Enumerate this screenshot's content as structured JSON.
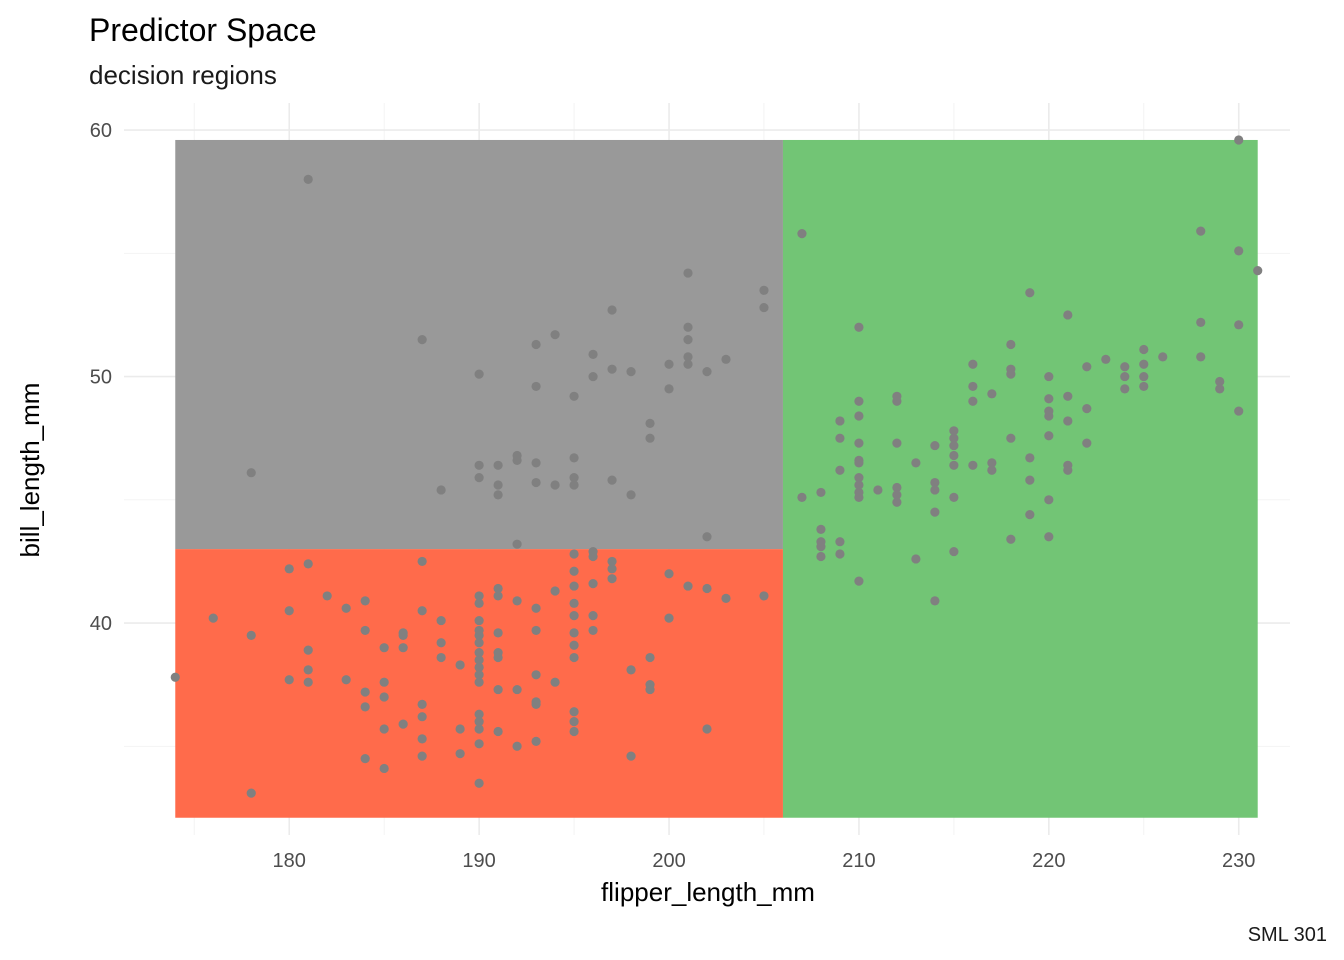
{
  "chart_data": {
    "type": "scatter",
    "title": "Predictor Space",
    "subtitle": "decision regions",
    "xlabel": "flipper_length_mm",
    "ylabel": "bill_length_mm",
    "caption": "SML 301",
    "xlim": [
      171.3,
      232.7
    ],
    "ylim": [
      31.4,
      61.1
    ],
    "xticks": [
      180,
      190,
      200,
      210,
      220,
      230
    ],
    "yticks": [
      40,
      50,
      60
    ],
    "grid": true,
    "point_color": "#808080",
    "regions": [
      {
        "xmin": 174,
        "xmax": 206,
        "ymin": 43,
        "ymax": 59.6,
        "color": "#999999"
      },
      {
        "xmin": 174,
        "xmax": 206,
        "ymin": 32.1,
        "ymax": 43,
        "color": "#FF6B4B"
      },
      {
        "xmin": 206,
        "xmax": 231,
        "ymin": 32.1,
        "ymax": 59.6,
        "color": "#72C575"
      }
    ],
    "points": [
      [
        181,
        58.0
      ],
      [
        178,
        46.1
      ],
      [
        187,
        51.5
      ],
      [
        188,
        45.4
      ],
      [
        190,
        50.1
      ],
      [
        190,
        46.4
      ],
      [
        190,
        45.9
      ],
      [
        191,
        46.4
      ],
      [
        191,
        45.6
      ],
      [
        191,
        45.2
      ],
      [
        192,
        46.8
      ],
      [
        192,
        46.6
      ],
      [
        192,
        43.2
      ],
      [
        193,
        51.3
      ],
      [
        193,
        49.6
      ],
      [
        193,
        46.5
      ],
      [
        193,
        45.7
      ],
      [
        194,
        51.7
      ],
      [
        194,
        45.6
      ],
      [
        195,
        49.2
      ],
      [
        195,
        46.7
      ],
      [
        195,
        45.9
      ],
      [
        195,
        45.6
      ],
      [
        196,
        50.9
      ],
      [
        196,
        50.0
      ],
      [
        197,
        52.7
      ],
      [
        197,
        50.3
      ],
      [
        197,
        45.8
      ],
      [
        198,
        50.2
      ],
      [
        198,
        45.2
      ],
      [
        199,
        48.1
      ],
      [
        199,
        47.5
      ],
      [
        200,
        50.5
      ],
      [
        200,
        49.5
      ],
      [
        201,
        54.2
      ],
      [
        201,
        52.0
      ],
      [
        201,
        51.5
      ],
      [
        201,
        50.8
      ],
      [
        201,
        50.5
      ],
      [
        202,
        50.2
      ],
      [
        202,
        43.5
      ],
      [
        203,
        50.7
      ],
      [
        205,
        53.5
      ],
      [
        205,
        52.8
      ],
      [
        174,
        37.8
      ],
      [
        176,
        40.2
      ],
      [
        178,
        39.5
      ],
      [
        178,
        33.1
      ],
      [
        180,
        42.2
      ],
      [
        180,
        40.5
      ],
      [
        180,
        37.7
      ],
      [
        181,
        42.4
      ],
      [
        181,
        38.9
      ],
      [
        181,
        38.1
      ],
      [
        181,
        37.6
      ],
      [
        182,
        41.1
      ],
      [
        183,
        40.6
      ],
      [
        183,
        37.7
      ],
      [
        184,
        40.9
      ],
      [
        184,
        39.7
      ],
      [
        184,
        37.2
      ],
      [
        184,
        36.6
      ],
      [
        184,
        34.5
      ],
      [
        185,
        39.0
      ],
      [
        185,
        37.6
      ],
      [
        185,
        37.0
      ],
      [
        185,
        35.7
      ],
      [
        185,
        34.1
      ],
      [
        186,
        39.6
      ],
      [
        186,
        39.5
      ],
      [
        186,
        39.0
      ],
      [
        186,
        35.9
      ],
      [
        187,
        42.5
      ],
      [
        187,
        40.5
      ],
      [
        187,
        36.7
      ],
      [
        187,
        36.2
      ],
      [
        187,
        35.3
      ],
      [
        187,
        34.6
      ],
      [
        188,
        40.1
      ],
      [
        188,
        39.2
      ],
      [
        188,
        38.6
      ],
      [
        189,
        38.3
      ],
      [
        189,
        35.7
      ],
      [
        189,
        34.7
      ],
      [
        190,
        41.1
      ],
      [
        190,
        40.8
      ],
      [
        190,
        40.1
      ],
      [
        190,
        39.7
      ],
      [
        190,
        39.5
      ],
      [
        190,
        39.2
      ],
      [
        190,
        38.8
      ],
      [
        190,
        38.5
      ],
      [
        190,
        38.2
      ],
      [
        190,
        37.9
      ],
      [
        190,
        37.6
      ],
      [
        190,
        36.3
      ],
      [
        190,
        36.0
      ],
      [
        190,
        35.7
      ],
      [
        190,
        35.1
      ],
      [
        190,
        33.5
      ],
      [
        191,
        41.4
      ],
      [
        191,
        41.1
      ],
      [
        191,
        39.6
      ],
      [
        191,
        38.8
      ],
      [
        191,
        38.6
      ],
      [
        191,
        37.3
      ],
      [
        191,
        35.6
      ],
      [
        192,
        40.9
      ],
      [
        192,
        37.3
      ],
      [
        192,
        35.0
      ],
      [
        193,
        40.6
      ],
      [
        193,
        39.7
      ],
      [
        193,
        37.9
      ],
      [
        193,
        36.8
      ],
      [
        193,
        36.7
      ],
      [
        193,
        35.2
      ],
      [
        194,
        41.3
      ],
      [
        194,
        37.6
      ],
      [
        195,
        42.8
      ],
      [
        195,
        42.1
      ],
      [
        195,
        41.5
      ],
      [
        195,
        40.8
      ],
      [
        195,
        40.3
      ],
      [
        195,
        39.6
      ],
      [
        195,
        39.1
      ],
      [
        195,
        38.6
      ],
      [
        195,
        36.4
      ],
      [
        195,
        36.0
      ],
      [
        195,
        35.6
      ],
      [
        196,
        42.9
      ],
      [
        196,
        42.7
      ],
      [
        196,
        41.6
      ],
      [
        196,
        40.3
      ],
      [
        196,
        39.7
      ],
      [
        197,
        42.5
      ],
      [
        197,
        42.2
      ],
      [
        197,
        41.8
      ],
      [
        198,
        38.1
      ],
      [
        198,
        34.6
      ],
      [
        199,
        38.6
      ],
      [
        199,
        37.5
      ],
      [
        199,
        37.3
      ],
      [
        200,
        42.0
      ],
      [
        200,
        40.2
      ],
      [
        201,
        41.5
      ],
      [
        202,
        41.4
      ],
      [
        202,
        35.7
      ],
      [
        203,
        41.0
      ],
      [
        205,
        41.1
      ],
      [
        207,
        55.8
      ],
      [
        207,
        45.1
      ],
      [
        208,
        45.3
      ],
      [
        208,
        43.8
      ],
      [
        208,
        43.3
      ],
      [
        208,
        43.1
      ],
      [
        208,
        42.7
      ],
      [
        209,
        48.2
      ],
      [
        209,
        47.5
      ],
      [
        209,
        46.2
      ],
      [
        209,
        43.3
      ],
      [
        209,
        42.8
      ],
      [
        210,
        52.0
      ],
      [
        210,
        49.0
      ],
      [
        210,
        48.4
      ],
      [
        210,
        47.3
      ],
      [
        210,
        46.6
      ],
      [
        210,
        46.5
      ],
      [
        210,
        45.9
      ],
      [
        210,
        45.6
      ],
      [
        210,
        45.3
      ],
      [
        210,
        45.1
      ],
      [
        210,
        41.7
      ],
      [
        211,
        45.4
      ],
      [
        212,
        49.2
      ],
      [
        212,
        49.0
      ],
      [
        212,
        47.3
      ],
      [
        212,
        45.5
      ],
      [
        212,
        45.2
      ],
      [
        212,
        44.9
      ],
      [
        213,
        46.5
      ],
      [
        213,
        42.6
      ],
      [
        214,
        47.2
      ],
      [
        214,
        45.7
      ],
      [
        214,
        45.4
      ],
      [
        214,
        44.5
      ],
      [
        214,
        40.9
      ],
      [
        215,
        47.8
      ],
      [
        215,
        47.5
      ],
      [
        215,
        47.2
      ],
      [
        215,
        46.8
      ],
      [
        215,
        46.4
      ],
      [
        215,
        45.1
      ],
      [
        215,
        42.9
      ],
      [
        216,
        50.5
      ],
      [
        216,
        49.6
      ],
      [
        216,
        49.0
      ],
      [
        216,
        46.4
      ],
      [
        217,
        49.3
      ],
      [
        217,
        46.5
      ],
      [
        217,
        46.2
      ],
      [
        218,
        51.3
      ],
      [
        218,
        50.3
      ],
      [
        218,
        50.1
      ],
      [
        218,
        47.5
      ],
      [
        218,
        43.4
      ],
      [
        219,
        53.4
      ],
      [
        219,
        46.7
      ],
      [
        219,
        45.8
      ],
      [
        219,
        44.4
      ],
      [
        220,
        50.0
      ],
      [
        220,
        49.1
      ],
      [
        220,
        48.6
      ],
      [
        220,
        48.4
      ],
      [
        220,
        47.6
      ],
      [
        220,
        45.0
      ],
      [
        220,
        43.5
      ],
      [
        221,
        52.5
      ],
      [
        221,
        49.2
      ],
      [
        221,
        48.2
      ],
      [
        221,
        46.4
      ],
      [
        221,
        46.2
      ],
      [
        222,
        50.4
      ],
      [
        222,
        48.7
      ],
      [
        222,
        47.3
      ],
      [
        223,
        50.7
      ],
      [
        224,
        50.4
      ],
      [
        224,
        50.0
      ],
      [
        224,
        49.5
      ],
      [
        225,
        51.1
      ],
      [
        225,
        50.5
      ],
      [
        225,
        50.0
      ],
      [
        225,
        49.6
      ],
      [
        226,
        50.8
      ],
      [
        228,
        55.9
      ],
      [
        228,
        52.2
      ],
      [
        228,
        50.8
      ],
      [
        229,
        49.8
      ],
      [
        229,
        49.5
      ],
      [
        230,
        59.6
      ],
      [
        230,
        55.1
      ],
      [
        230,
        52.1
      ],
      [
        230,
        48.6
      ],
      [
        231,
        54.3
      ]
    ]
  }
}
